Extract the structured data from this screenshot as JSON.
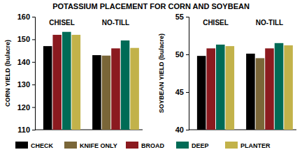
{
  "title": "POTASSIUM PLACEMENT FOR CORN AND SOYBEAN",
  "chart_data": [
    {
      "type": "bar",
      "y_label": "CORN YIELD (bu/acre)",
      "categories": [
        "CHISEL",
        "NO-TILL"
      ],
      "series": [
        {
          "name": "CHECK",
          "color": "#000000",
          "values": [
            147,
            143
          ]
        },
        {
          "name": "KNIFE ONLY",
          "color": "#7a6638",
          "values": [
            null,
            142.8
          ]
        },
        {
          "name": "BROAD",
          "color": "#8b1a1f",
          "values": [
            152,
            146
          ]
        },
        {
          "name": "DEEP",
          "color": "#006b56",
          "values": [
            153.3,
            149.5
          ]
        },
        {
          "name": "PLANTER",
          "color": "#c2b24a",
          "values": [
            152,
            146.2
          ]
        }
      ],
      "ylim": [
        110,
        160
      ],
      "yticks": [
        110,
        120,
        130,
        140,
        150,
        160
      ],
      "grid": false
    },
    {
      "type": "bar",
      "y_label": "SOYBEAN YIELD (bu/acre)",
      "categories": [
        "CHISEL",
        "NO-TILL"
      ],
      "series": [
        {
          "name": "CHECK",
          "color": "#000000",
          "values": [
            49.8,
            50.1
          ]
        },
        {
          "name": "KNIFE ONLY",
          "color": "#7a6638",
          "values": [
            null,
            49.5
          ]
        },
        {
          "name": "BROAD",
          "color": "#8b1a1f",
          "values": [
            50.8,
            50.8
          ]
        },
        {
          "name": "DEEP",
          "color": "#006b56",
          "values": [
            51.3,
            51.5
          ]
        },
        {
          "name": "PLANTER",
          "color": "#c2b24a",
          "values": [
            51.1,
            51.2
          ]
        }
      ],
      "ylim": [
        40,
        55
      ],
      "yticks": [
        40,
        45,
        50,
        55
      ],
      "grid": false
    }
  ]
}
